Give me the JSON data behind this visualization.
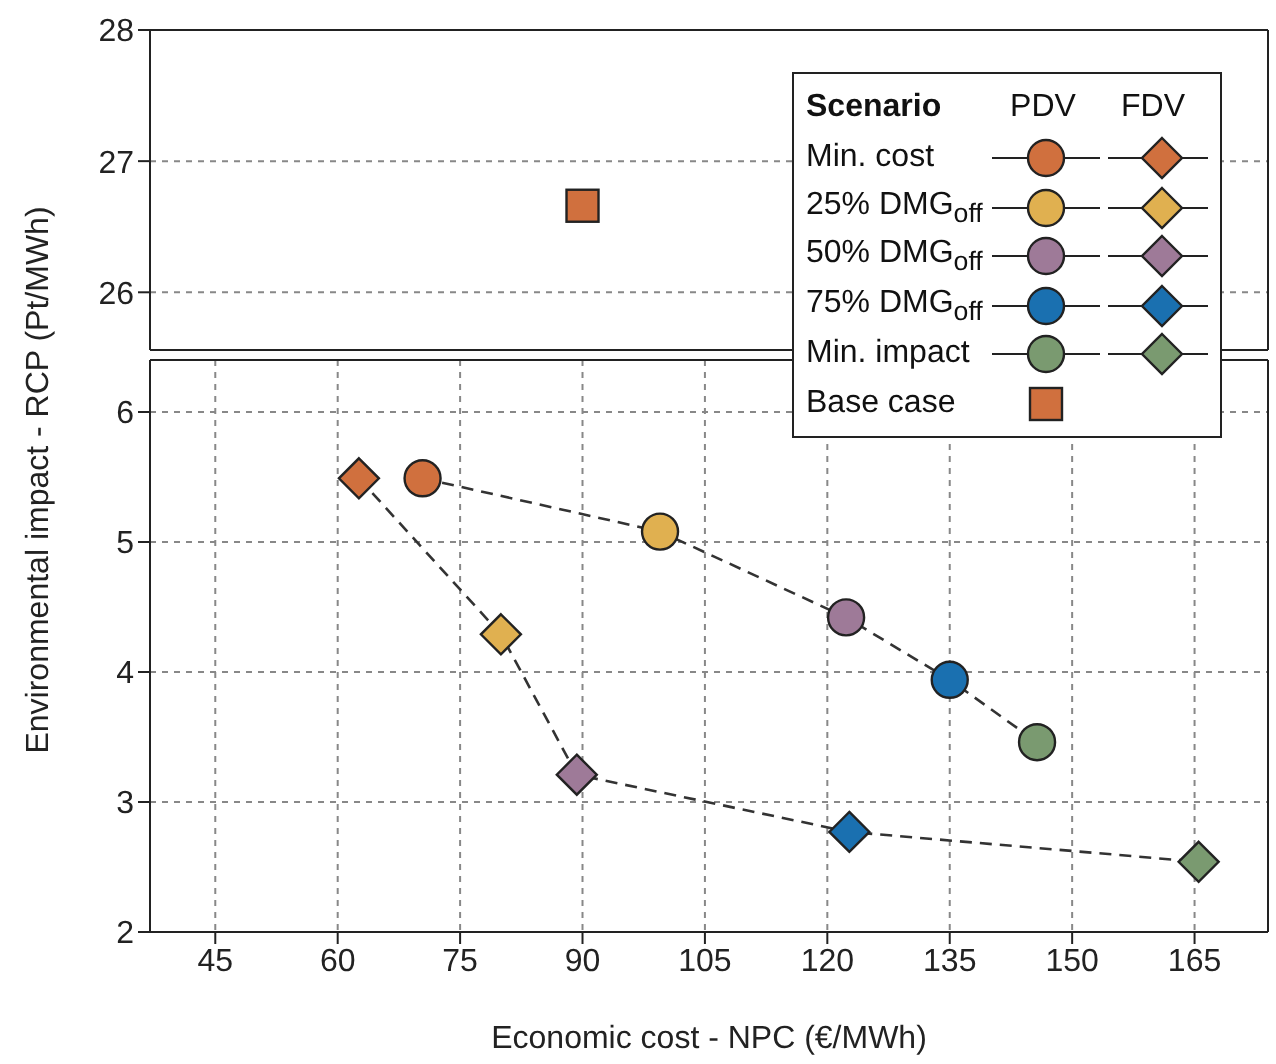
{
  "chart_data": [
    {
      "type": "scatter",
      "xlim": [
        37,
        174
      ],
      "xticks": [
        45,
        60,
        75,
        90,
        105,
        120,
        135,
        150,
        165
      ],
      "ylim": [
        25.56,
        28
      ],
      "yticks": [
        26,
        27,
        28
      ],
      "tick_labels": "y",
      "grid": true,
      "series": [
        {
          "name": "Base case",
          "color": "#d0703e",
          "marker": "square",
          "x": [
            90
          ],
          "values": [
            26.66
          ]
        }
      ]
    },
    {
      "type": "scatter",
      "xlabel": "Economic cost - NPC (€/MWh)",
      "ylabel": "Environmental impact - RCP (Pt/MWh)",
      "xlim": [
        37,
        174
      ],
      "xticks": [
        45,
        60,
        75,
        90,
        105,
        120,
        135,
        150,
        165
      ],
      "ylim": [
        2,
        6.4
      ],
      "yticks": [
        2,
        3,
        4,
        5,
        6
      ],
      "grid": true,
      "legend": "top right",
      "legend_title": "Scenario",
      "annotations": [
        "PDV",
        "FDV"
      ],
      "series": [
        {
          "type": "line",
          "color": "#333333",
          "line_style": "dashed",
          "marker": "none",
          "x": [
            70.4,
            99.5,
            122.3,
            135,
            145.7
          ],
          "values": [
            5.49,
            5.08,
            4.42,
            3.94,
            3.46
          ]
        },
        {
          "type": "line",
          "color": "#333333",
          "line_style": "dashed",
          "marker": "none",
          "x": [
            62.6,
            80,
            89.3,
            122.7,
            165.5
          ],
          "values": [
            5.49,
            4.29,
            3.21,
            2.77,
            2.54
          ]
        },
        {
          "name": "Min. cost",
          "color": "#d0703e",
          "marker": "circle",
          "x": [
            70.4
          ],
          "values": [
            5.49
          ]
        },
        {
          "color": "#d0703e",
          "marker": "diamond",
          "x": [
            62.6
          ],
          "values": [
            5.49
          ]
        },
        {
          "name": "25% DMG$_{off}$",
          "color": "#e0b050",
          "marker": "circle",
          "x": [
            99.5
          ],
          "values": [
            5.08
          ]
        },
        {
          "color": "#e0b050",
          "marker": "diamond",
          "x": [
            80
          ],
          "values": [
            4.29
          ]
        },
        {
          "name": "50% DMG$_{off}$",
          "color": "#9e7a98",
          "marker": "circle",
          "x": [
            122.3
          ],
          "values": [
            4.42
          ]
        },
        {
          "color": "#9e7a98",
          "marker": "diamond",
          "x": [
            89.3
          ],
          "values": [
            3.21
          ]
        },
        {
          "name": "75% DMG$_{off}$",
          "color": "#1a70b0",
          "marker": "circle",
          "x": [
            135
          ],
          "values": [
            3.94
          ]
        },
        {
          "color": "#1a70b0",
          "marker": "diamond",
          "x": [
            122.7
          ],
          "values": [
            2.77
          ]
        },
        {
          "name": "Min. impact",
          "color": "#7a9a70",
          "marker": "circle",
          "x": [
            145.7
          ],
          "values": [
            3.46
          ]
        },
        {
          "color": "#7a9a70",
          "marker": "diamond",
          "x": [
            165.5
          ],
          "values": [
            2.54
          ]
        }
      ]
    }
  ]
}
